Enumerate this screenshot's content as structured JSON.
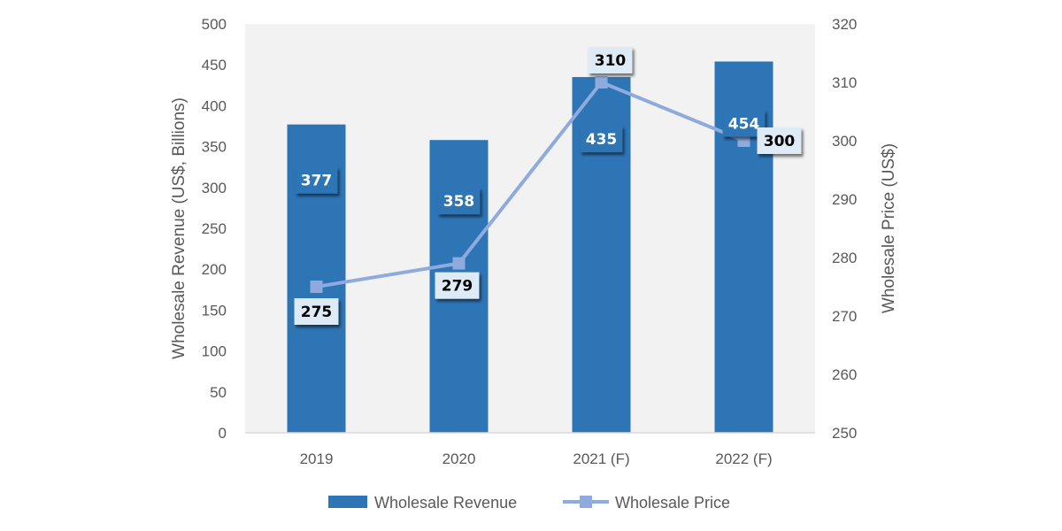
{
  "chart_data": {
    "type": "bar",
    "categories": [
      "2019",
      "2020",
      "2021 (F)",
      "2022 (F)"
    ],
    "series": [
      {
        "name": "Wholesale Revenue",
        "type": "bar",
        "axis": "left",
        "color": "#2E75B6",
        "values": [
          377,
          358,
          435,
          454
        ],
        "labels": [
          "377",
          "358",
          "435",
          "454"
        ]
      },
      {
        "name": "Wholesale Price",
        "type": "line",
        "axis": "right",
        "color": "#8FAADC",
        "values": [
          275,
          279,
          310,
          300
        ],
        "labels": [
          "275",
          "279",
          "310",
          "300"
        ]
      }
    ],
    "title": "",
    "xlabel": "",
    "ylabel": "Wholesale Revenue (US$, Billions)",
    "y2label": "Wholesale Price (US$)",
    "ylim": [
      0,
      500
    ],
    "y2lim": [
      250,
      320
    ],
    "yticks": [
      "0",
      "50",
      "100",
      "150",
      "200",
      "250",
      "300",
      "350",
      "400",
      "450",
      "500"
    ],
    "y2ticks": [
      "250",
      "260",
      "270",
      "280",
      "290",
      "300",
      "310",
      "320"
    ],
    "plot_background": "#F2F2F2",
    "grid": false,
    "legend": "bottom"
  }
}
